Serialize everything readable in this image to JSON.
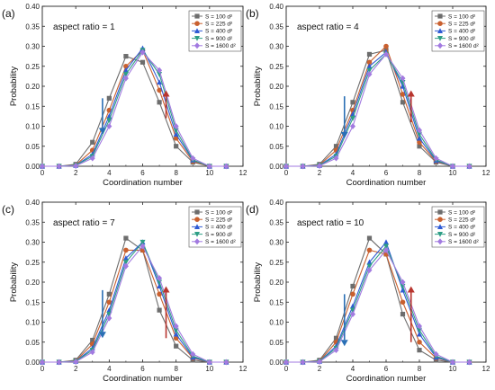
{
  "chart_data": [
    {
      "type": "line",
      "panel": "(a)",
      "annotation": "aspect ratio = 1",
      "xlabel": "Coordination number",
      "ylabel": "Probability",
      "xlim": [
        0,
        12
      ],
      "ylim": [
        0,
        0.4
      ],
      "xticks": [
        "0",
        "2",
        "4",
        "6",
        "8",
        "10",
        "12"
      ],
      "yticks": [
        "0.00",
        "0.05",
        "0.10",
        "0.15",
        "0.20",
        "0.25",
        "0.30",
        "0.35",
        "0.40"
      ],
      "legend_position": "top-right",
      "arrows": [
        {
          "x": 3.6,
          "from": 0.17,
          "to": 0.08,
          "color": "#2a6fb5"
        },
        {
          "x": 7.4,
          "from": 0.12,
          "to": 0.19,
          "color": "#b8352e"
        }
      ],
      "series": [
        {
          "name": "S = 100 d²",
          "color": "#6d6d6d",
          "marker": "square",
          "x": [
            0,
            1,
            2,
            3,
            4,
            5,
            6,
            7,
            8,
            9,
            10,
            11
          ],
          "y": [
            0,
            0,
            0.005,
            0.06,
            0.17,
            0.275,
            0.26,
            0.16,
            0.05,
            0.01,
            0,
            0
          ]
        },
        {
          "name": "S = 225 d²",
          "color": "#c9602f",
          "marker": "circle",
          "x": [
            0,
            1,
            2,
            3,
            4,
            5,
            6,
            7,
            8,
            9,
            10,
            11
          ],
          "y": [
            0,
            0,
            0.003,
            0.04,
            0.14,
            0.25,
            0.29,
            0.19,
            0.07,
            0.012,
            0,
            0
          ]
        },
        {
          "name": "S = 400 d²",
          "color": "#2f5bd4",
          "marker": "triangle-up",
          "x": [
            0,
            1,
            2,
            3,
            4,
            5,
            6,
            7,
            8,
            9,
            10,
            11
          ],
          "y": [
            0,
            0,
            0.002,
            0.03,
            0.125,
            0.24,
            0.295,
            0.21,
            0.08,
            0.015,
            0,
            0
          ]
        },
        {
          "name": "S = 900 d²",
          "color": "#2e9e86",
          "marker": "triangle-down",
          "x": [
            0,
            1,
            2,
            3,
            4,
            5,
            6,
            7,
            8,
            9,
            10,
            11
          ],
          "y": [
            0,
            0,
            0.002,
            0.025,
            0.115,
            0.23,
            0.29,
            0.23,
            0.09,
            0.016,
            0,
            0
          ]
        },
        {
          "name": "S = 1600 d²",
          "color": "#a27ae0",
          "marker": "diamond",
          "x": [
            0,
            1,
            2,
            3,
            4,
            5,
            6,
            7,
            8,
            9,
            10,
            11
          ],
          "y": [
            0,
            0,
            0.001,
            0.02,
            0.1,
            0.22,
            0.285,
            0.24,
            0.1,
            0.02,
            0,
            0
          ]
        }
      ]
    },
    {
      "type": "line",
      "panel": "(b)",
      "annotation": "aspect ratio = 4",
      "xlabel": "Coordination number",
      "ylabel": "Probability",
      "xlim": [
        0,
        12
      ],
      "ylim": [
        0,
        0.4
      ],
      "xticks": [
        "0",
        "2",
        "4",
        "6",
        "8",
        "10",
        "12"
      ],
      "yticks": [
        "0.00",
        "0.05",
        "0.10",
        "0.15",
        "0.20",
        "0.25",
        "0.30",
        "0.35",
        "0.40"
      ],
      "legend_position": "top-right",
      "arrows": [
        {
          "x": 3.5,
          "from": 0.175,
          "to": 0.07,
          "color": "#2a6fb5"
        },
        {
          "x": 7.5,
          "from": 0.11,
          "to": 0.19,
          "color": "#b8352e"
        }
      ],
      "series": [
        {
          "name": "S = 100 d²",
          "color": "#6d6d6d",
          "marker": "square",
          "x": [
            0,
            1,
            2,
            3,
            4,
            5,
            6,
            7,
            8,
            9,
            10,
            11
          ],
          "y": [
            0,
            0,
            0.005,
            0.05,
            0.16,
            0.28,
            0.29,
            0.16,
            0.05,
            0.01,
            0,
            0
          ]
        },
        {
          "name": "S = 225 d²",
          "color": "#c9602f",
          "marker": "circle",
          "x": [
            0,
            1,
            2,
            3,
            4,
            5,
            6,
            7,
            8,
            9,
            10,
            11
          ],
          "y": [
            0,
            0,
            0.003,
            0.04,
            0.14,
            0.26,
            0.3,
            0.18,
            0.06,
            0.012,
            0,
            0
          ]
        },
        {
          "name": "S = 400 d²",
          "color": "#2f5bd4",
          "marker": "triangle-up",
          "x": [
            0,
            1,
            2,
            3,
            4,
            5,
            6,
            7,
            8,
            9,
            10,
            11
          ],
          "y": [
            0,
            0,
            0.002,
            0.03,
            0.13,
            0.25,
            0.285,
            0.2,
            0.07,
            0.014,
            0,
            0
          ]
        },
        {
          "name": "S = 900 d²",
          "color": "#2e9e86",
          "marker": "triangle-down",
          "x": [
            0,
            1,
            2,
            3,
            4,
            5,
            6,
            7,
            8,
            9,
            10,
            11
          ],
          "y": [
            0,
            0,
            0.002,
            0.025,
            0.12,
            0.24,
            0.28,
            0.21,
            0.08,
            0.016,
            0,
            0
          ]
        },
        {
          "name": "S = 1600 d²",
          "color": "#a27ae0",
          "marker": "diamond",
          "x": [
            0,
            1,
            2,
            3,
            4,
            5,
            6,
            7,
            8,
            9,
            10,
            11
          ],
          "y": [
            0,
            0,
            0.001,
            0.02,
            0.1,
            0.23,
            0.28,
            0.22,
            0.09,
            0.02,
            0,
            0
          ]
        }
      ]
    },
    {
      "type": "line",
      "panel": "(c)",
      "annotation": "aspect ratio = 7",
      "xlabel": "Coordination number",
      "ylabel": "Probability",
      "xlim": [
        0,
        12
      ],
      "ylim": [
        0,
        0.4
      ],
      "xticks": [
        "0",
        "2",
        "4",
        "6",
        "8",
        "10",
        "12"
      ],
      "yticks": [
        "0.00",
        "0.05",
        "0.10",
        "0.15",
        "0.20",
        "0.25",
        "0.30",
        "0.35",
        "0.40"
      ],
      "legend_position": "top-right",
      "arrows": [
        {
          "x": 3.6,
          "from": 0.18,
          "to": 0.06,
          "color": "#2a6fb5"
        },
        {
          "x": 7.4,
          "from": 0.06,
          "to": 0.19,
          "color": "#b8352e"
        }
      ],
      "series": [
        {
          "name": "S = 100 d²",
          "color": "#6d6d6d",
          "marker": "square",
          "x": [
            0,
            1,
            2,
            3,
            4,
            5,
            6,
            7,
            8,
            9,
            10,
            11
          ],
          "y": [
            0,
            0,
            0.005,
            0.055,
            0.17,
            0.31,
            0.28,
            0.13,
            0.04,
            0.005,
            0,
            0
          ]
        },
        {
          "name": "S = 225 d²",
          "color": "#c9602f",
          "marker": "circle",
          "x": [
            0,
            1,
            2,
            3,
            4,
            5,
            6,
            7,
            8,
            9,
            10,
            11
          ],
          "y": [
            0,
            0,
            0.003,
            0.045,
            0.15,
            0.28,
            0.28,
            0.17,
            0.06,
            0.01,
            0,
            0
          ]
        },
        {
          "name": "S = 400 d²",
          "color": "#2f5bd4",
          "marker": "triangle-up",
          "x": [
            0,
            1,
            2,
            3,
            4,
            5,
            6,
            7,
            8,
            9,
            10,
            11
          ],
          "y": [
            0,
            0,
            0.002,
            0.035,
            0.13,
            0.26,
            0.3,
            0.19,
            0.07,
            0.012,
            0,
            0
          ]
        },
        {
          "name": "S = 900 d²",
          "color": "#2e9e86",
          "marker": "triangle-down",
          "x": [
            0,
            1,
            2,
            3,
            4,
            5,
            6,
            7,
            8,
            9,
            10,
            11
          ],
          "y": [
            0,
            0,
            0.002,
            0.03,
            0.12,
            0.25,
            0.3,
            0.2,
            0.08,
            0.015,
            0,
            0
          ]
        },
        {
          "name": "S = 1600 d²",
          "color": "#a27ae0",
          "marker": "diamond",
          "x": [
            0,
            1,
            2,
            3,
            4,
            5,
            6,
            7,
            8,
            9,
            10,
            11
          ],
          "y": [
            0,
            0,
            0.001,
            0.025,
            0.11,
            0.24,
            0.29,
            0.21,
            0.09,
            0.02,
            0,
            0
          ]
        }
      ]
    },
    {
      "type": "line",
      "panel": "(d)",
      "annotation": "aspect ratio = 10",
      "xlabel": "Coordination number",
      "ylabel": "Probability",
      "xlim": [
        0,
        12
      ],
      "ylim": [
        0,
        0.4
      ],
      "xticks": [
        "0",
        "2",
        "4",
        "6",
        "8",
        "10",
        "12"
      ],
      "yticks": [
        "0.00",
        "0.05",
        "0.10",
        "0.15",
        "0.20",
        "0.25",
        "0.30",
        "0.35",
        "0.40"
      ],
      "legend_position": "top-right",
      "arrows": [
        {
          "x": 3.5,
          "from": 0.17,
          "to": 0.04,
          "color": "#2a6fb5"
        },
        {
          "x": 7.5,
          "from": 0.05,
          "to": 0.19,
          "color": "#b8352e"
        }
      ],
      "series": [
        {
          "name": "S = 100 d²",
          "color": "#6d6d6d",
          "marker": "square",
          "x": [
            0,
            1,
            2,
            3,
            4,
            5,
            6,
            7,
            8,
            9,
            10,
            11
          ],
          "y": [
            0,
            0,
            0.005,
            0.06,
            0.19,
            0.31,
            0.27,
            0.12,
            0.03,
            0.005,
            0,
            0
          ]
        },
        {
          "name": "S = 225 d²",
          "color": "#c9602f",
          "marker": "circle",
          "x": [
            0,
            1,
            2,
            3,
            4,
            5,
            6,
            7,
            8,
            9,
            10,
            11
          ],
          "y": [
            0,
            0,
            0.003,
            0.05,
            0.17,
            0.28,
            0.27,
            0.15,
            0.05,
            0.01,
            0,
            0
          ]
        },
        {
          "name": "S = 400 d²",
          "color": "#2f5bd4",
          "marker": "triangle-up",
          "x": [
            0,
            1,
            2,
            3,
            4,
            5,
            6,
            7,
            8,
            9,
            10,
            11
          ],
          "y": [
            0,
            0,
            0.002,
            0.04,
            0.14,
            0.25,
            0.3,
            0.18,
            0.07,
            0.012,
            0,
            0
          ]
        },
        {
          "name": "S = 900 d²",
          "color": "#2e9e86",
          "marker": "triangle-down",
          "x": [
            0,
            1,
            2,
            3,
            4,
            5,
            6,
            7,
            8,
            9,
            10,
            11
          ],
          "y": [
            0,
            0,
            0.002,
            0.035,
            0.13,
            0.24,
            0.29,
            0.19,
            0.08,
            0.015,
            0,
            0
          ]
        },
        {
          "name": "S = 1600 d²",
          "color": "#a27ae0",
          "marker": "diamond",
          "x": [
            0,
            1,
            2,
            3,
            4,
            5,
            6,
            7,
            8,
            9,
            10,
            11
          ],
          "y": [
            0,
            0,
            0.001,
            0.03,
            0.12,
            0.23,
            0.28,
            0.2,
            0.09,
            0.02,
            0,
            0
          ]
        }
      ]
    }
  ]
}
